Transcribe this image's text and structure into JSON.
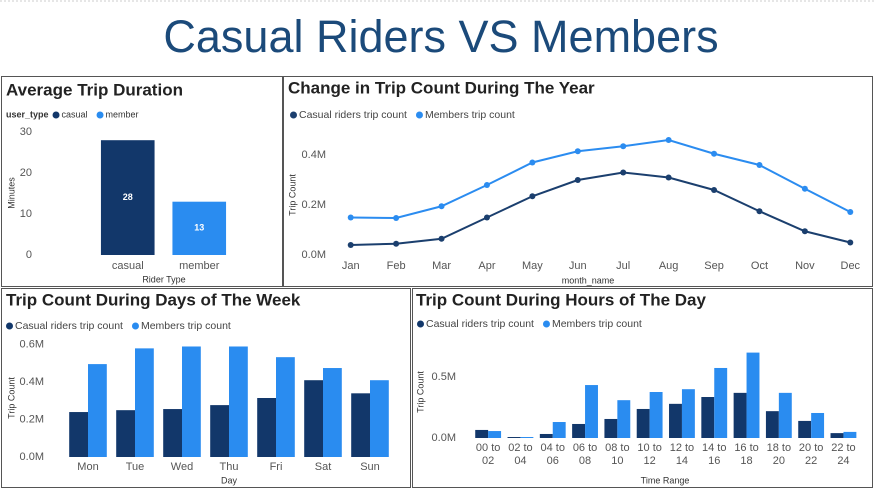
{
  "title": "Casual Riders VS Members",
  "chart_data": [
    {
      "type": "bar",
      "title": "Average Trip Duration",
      "legend_title": "user_type",
      "categories": [
        "casual",
        "member"
      ],
      "series": [
        {
          "name": "casual",
          "color": "#12376a",
          "values": [
            28,
            null
          ]
        },
        {
          "name": "member",
          "color": "#2a8cf0",
          "values": [
            null,
            13
          ]
        }
      ],
      "ylim": [
        0,
        30
      ],
      "yticks": [
        0,
        10,
        20,
        30
      ],
      "y_label": "Minutes",
      "x_label": "Rider Type",
      "data_labels": true,
      "grid": false
    },
    {
      "type": "line",
      "title": "Change in Trip Count During The Year",
      "categories": [
        "Jan",
        "Feb",
        "Mar",
        "Apr",
        "May",
        "Jun",
        "Jul",
        "Aug",
        "Sep",
        "Oct",
        "Nov",
        "Dec"
      ],
      "series": [
        {
          "name": "Casual riders trip count",
          "color": "#1b3f6e",
          "values": [
            40000,
            45000,
            65000,
            150000,
            235000,
            300000,
            330000,
            310000,
            260000,
            175000,
            95000,
            50000
          ]
        },
        {
          "name": "Members trip count",
          "color": "#2b8cf0",
          "values": [
            150000,
            148000,
            195000,
            280000,
            370000,
            415000,
            435000,
            460000,
            405000,
            360000,
            265000,
            172000
          ]
        }
      ],
      "ylim": [
        0,
        480000
      ],
      "yticks": [
        {
          "value": 0,
          "label": "0.0M"
        },
        {
          "value": 200000,
          "label": "0.2M"
        },
        {
          "value": 400000,
          "label": "0.4M"
        }
      ],
      "y_label": "Trip Count",
      "x_label": "month_name",
      "grid": false
    },
    {
      "type": "bar",
      "title": "Trip Count During Days of The Week",
      "categories": [
        "Mon",
        "Tue",
        "Wed",
        "Thu",
        "Fri",
        "Sat",
        "Sun"
      ],
      "series": [
        {
          "name": "Casual riders trip count",
          "color": "#12376a",
          "values": [
            240000,
            250000,
            256000,
            277000,
            315000,
            410000,
            340000
          ]
        },
        {
          "name": "Members trip count",
          "color": "#2a8cf0",
          "values": [
            496000,
            580000,
            590000,
            590000,
            533000,
            475000,
            410000
          ]
        }
      ],
      "ylim": [
        0,
        630000
      ],
      "yticks": [
        {
          "value": 0,
          "label": "0.0M"
        },
        {
          "value": 200000,
          "label": "0.2M"
        },
        {
          "value": 400000,
          "label": "0.4M"
        },
        {
          "value": 600000,
          "label": "0.6M"
        }
      ],
      "y_label": "Trip Count",
      "x_label": "Day",
      "grid": false
    },
    {
      "type": "bar",
      "title": "Trip Count During Hours of The Day",
      "categories": [
        "00 to 02",
        "02 to 04",
        "04 to 06",
        "06 to 08",
        "08 to 10",
        "10 to 12",
        "12 to 14",
        "14 to 16",
        "16 to 18",
        "18 to 20",
        "20 to 22",
        "22 to 24"
      ],
      "series": [
        {
          "name": "Casual riders trip count",
          "color": "#12376a",
          "values": [
            66000,
            8000,
            33000,
            115000,
            156000,
            238000,
            280000,
            336000,
            370000,
            220000,
            140000,
            40000
          ]
        },
        {
          "name": "Members trip count",
          "color": "#2a8cf0",
          "values": [
            57000,
            8000,
            131000,
            434000,
            310000,
            377000,
            400000,
            574000,
            700000,
            370000,
            205000,
            50000
          ]
        }
      ],
      "ylim": [
        0,
        800000
      ],
      "yticks": [
        {
          "value": 0,
          "label": "0.0M"
        },
        {
          "value": 500000,
          "label": "0.5M"
        }
      ],
      "y_label": "Trip Count",
      "x_label": "Time Range",
      "grid": false
    }
  ]
}
